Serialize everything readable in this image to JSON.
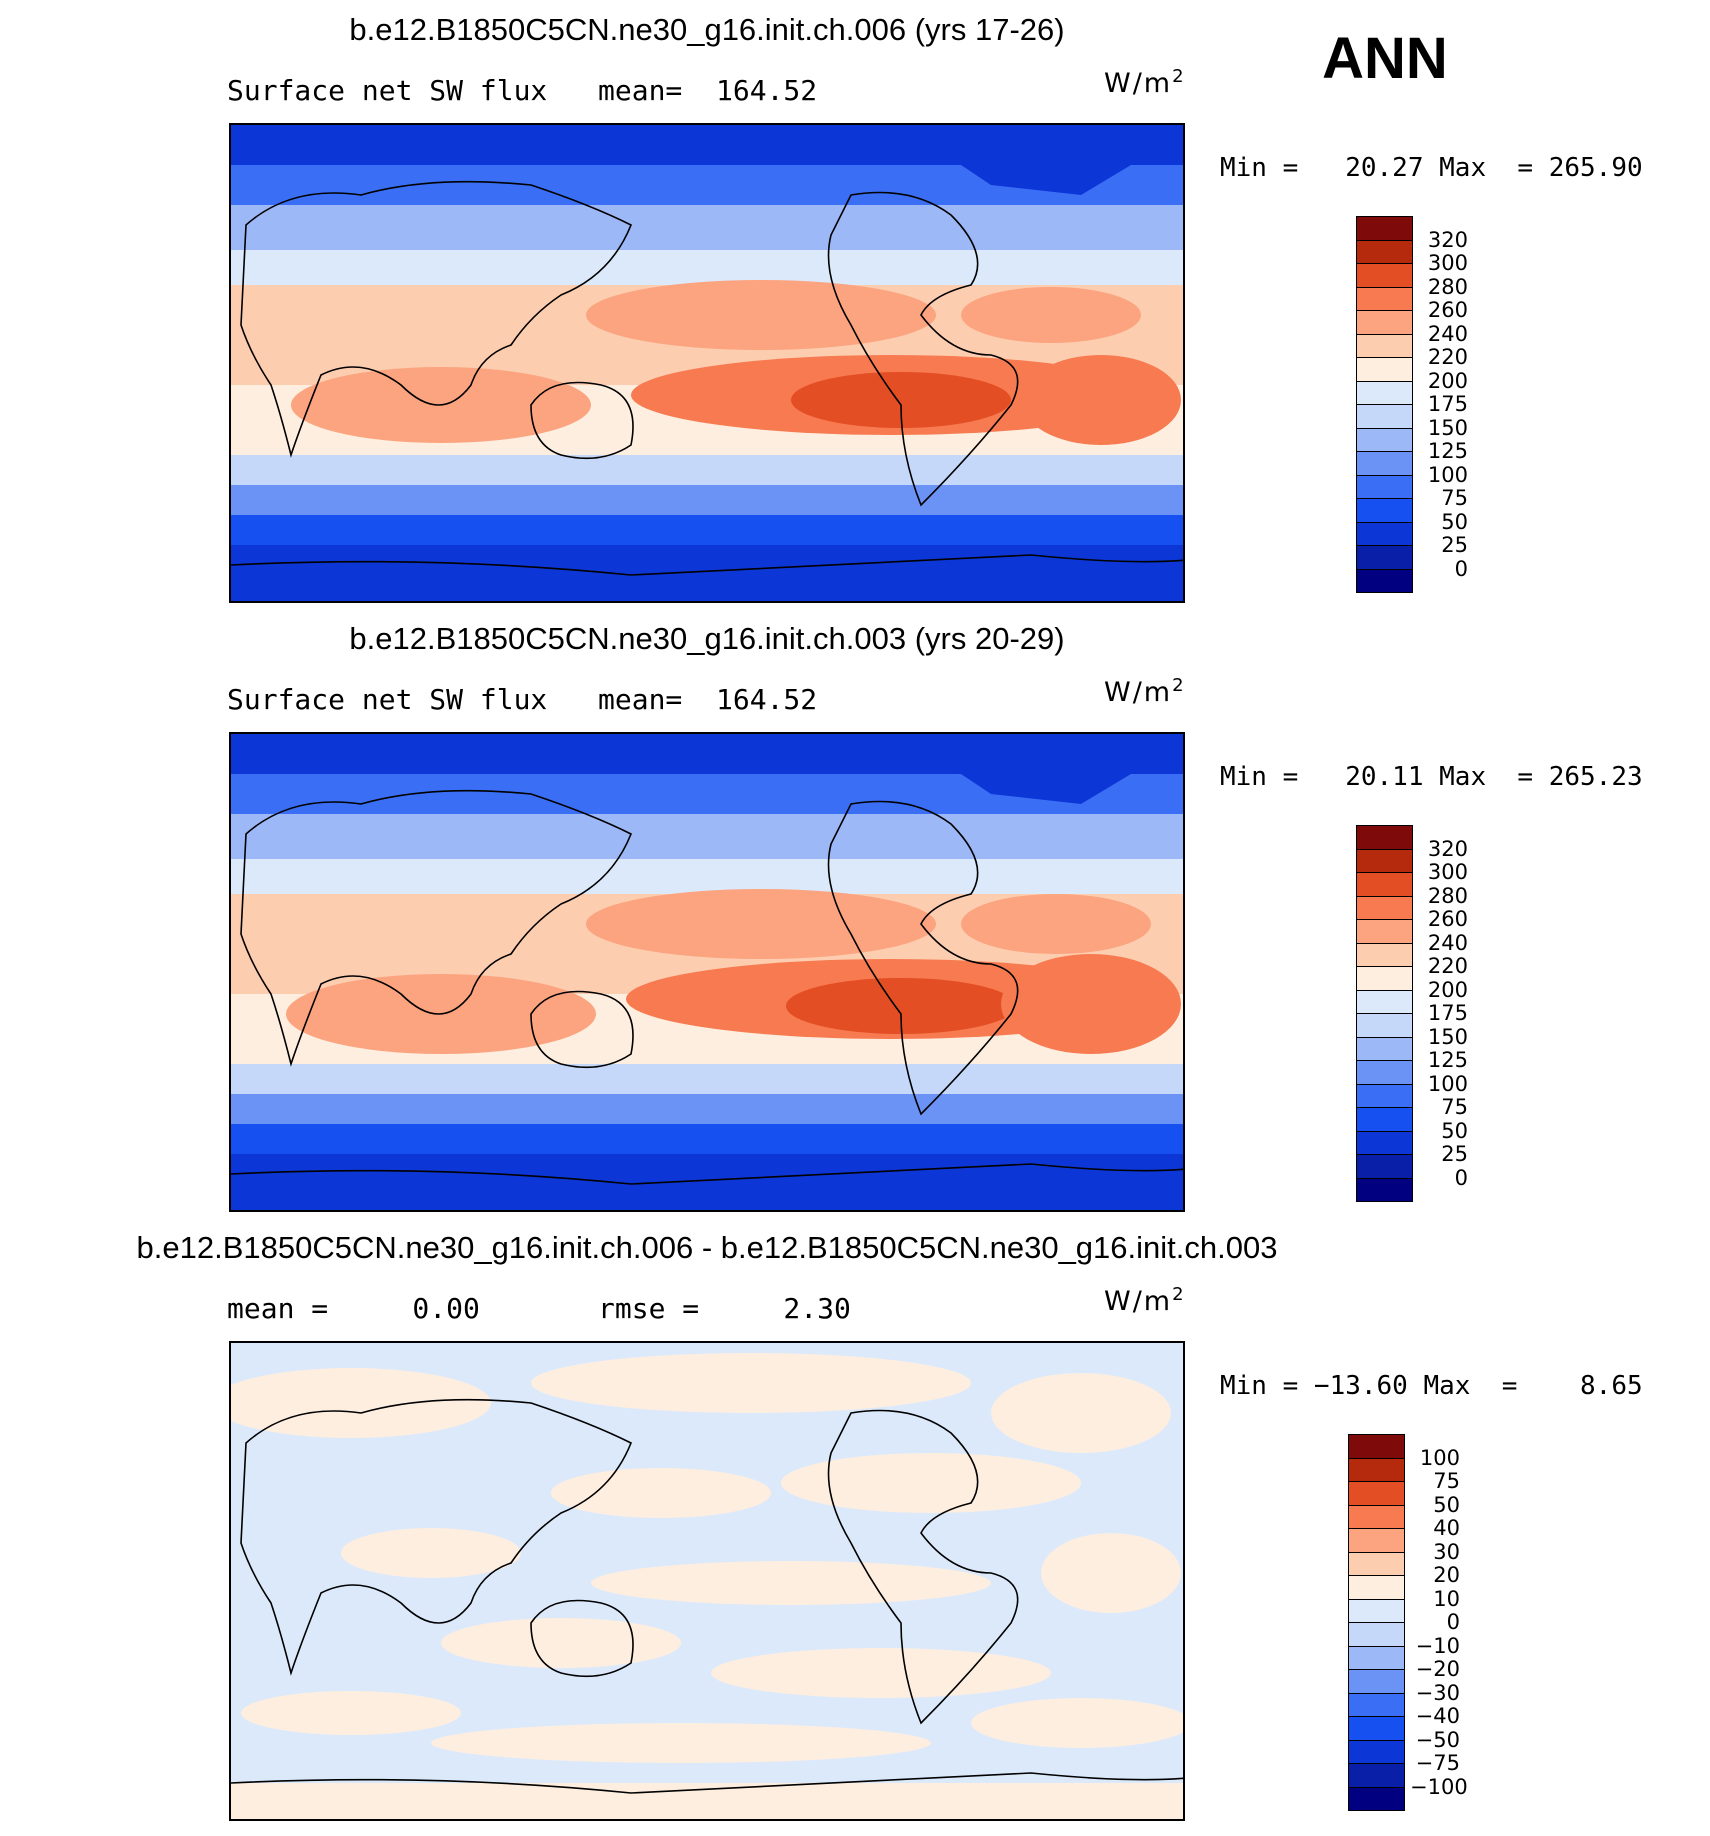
{
  "header": {
    "season": "ANN"
  },
  "panels": [
    {
      "title": "b.e12.B1850C5CN.ne30_g16.init.ch.006 (yrs 17-26)",
      "left_label": "Surface net SW flux",
      "right_label": "mean=  164.52",
      "units": "W/m",
      "units_sup": "2",
      "minmax": "Min =   20.27 Max  = 265.90",
      "colorbar_levels": [
        "320",
        "300",
        "280",
        "260",
        "240",
        "220",
        "200",
        "175",
        "150",
        "125",
        "100",
        "75",
        "50",
        "25",
        "0"
      ]
    },
    {
      "title": "b.e12.B1850C5CN.ne30_g16.init.ch.003 (yrs 20-29)",
      "left_label": "Surface net SW flux",
      "right_label": "mean=  164.52",
      "units": "W/m",
      "units_sup": "2",
      "minmax": "Min =   20.11 Max  = 265.23",
      "colorbar_levels": [
        "320",
        "300",
        "280",
        "260",
        "240",
        "220",
        "200",
        "175",
        "150",
        "125",
        "100",
        "75",
        "50",
        "25",
        "0"
      ]
    },
    {
      "title": "b.e12.B1850C5CN.ne30_g16.init.ch.006 - b.e12.B1850C5CN.ne30_g16.init.ch.003",
      "left_label": "mean =     0.00",
      "right_label": "rmse =     2.30",
      "units": "W/m",
      "units_sup": "2",
      "minmax": "Min = −13.60 Max  =    8.65",
      "colorbar_levels": [
        "100",
        "75",
        "50",
        "40",
        "30",
        "20",
        "10",
        "0",
        "−10",
        "−20",
        "−30",
        "−40",
        "−50",
        "−75",
        "−100"
      ]
    }
  ],
  "colors": {
    "abs_scale": [
      "#000080",
      "#0a1fa8",
      "#0d36d6",
      "#1650f0",
      "#3a6ff5",
      "#6a93f5",
      "#9db8f7",
      "#c5d8fa",
      "#dce9fb",
      "#fdeee0",
      "#fdcdb0",
      "#fba47f",
      "#f77a50",
      "#e34e24",
      "#b52a0c",
      "#7e0a0a"
    ],
    "diff_scale": [
      "#000080",
      "#0a1fa8",
      "#0d36d6",
      "#1650f0",
      "#3a6ff5",
      "#6a93f5",
      "#9db8f7",
      "#c5d8fa",
      "#dce9fb",
      "#fdeee0",
      "#fdcdb0",
      "#fba47f",
      "#f77a50",
      "#e34e24",
      "#b52a0c",
      "#7e0a0a"
    ]
  }
}
